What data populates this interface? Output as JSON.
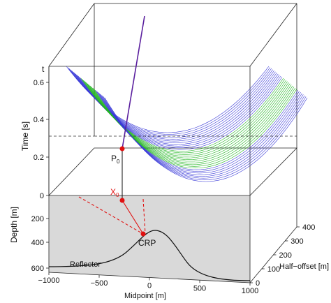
{
  "diagram": {
    "time_axis": {
      "letter": "t",
      "label": "Time [s]",
      "ticks": [
        "0",
        "0.2",
        "0.4",
        "0.6"
      ]
    },
    "depth_axis": {
      "label": "Depth [m]",
      "ticks": [
        "200",
        "400",
        "600"
      ]
    },
    "midpoint_axis": {
      "label": "Midpoint [m]",
      "ticks": [
        "−1000",
        "−500",
        "0",
        "500",
        "1000"
      ]
    },
    "halfoffset_axis": {
      "label": "Half−offset [m]",
      "ticks": [
        "0",
        "100",
        "200",
        "300",
        "400"
      ]
    },
    "labels": {
      "p0_main": "P",
      "p0_sub": "0",
      "x0_main": "X",
      "x0_sub": "0",
      "crp": "CRP",
      "reflector": "Reflector"
    },
    "colors": {
      "traces_blue": "#3a3ad8",
      "traces_green": "#22b522",
      "highlight_trace": "#5a1f9e",
      "points_red": "#e01010",
      "depth_panel_fill": "#d9d9d9"
    }
  }
}
